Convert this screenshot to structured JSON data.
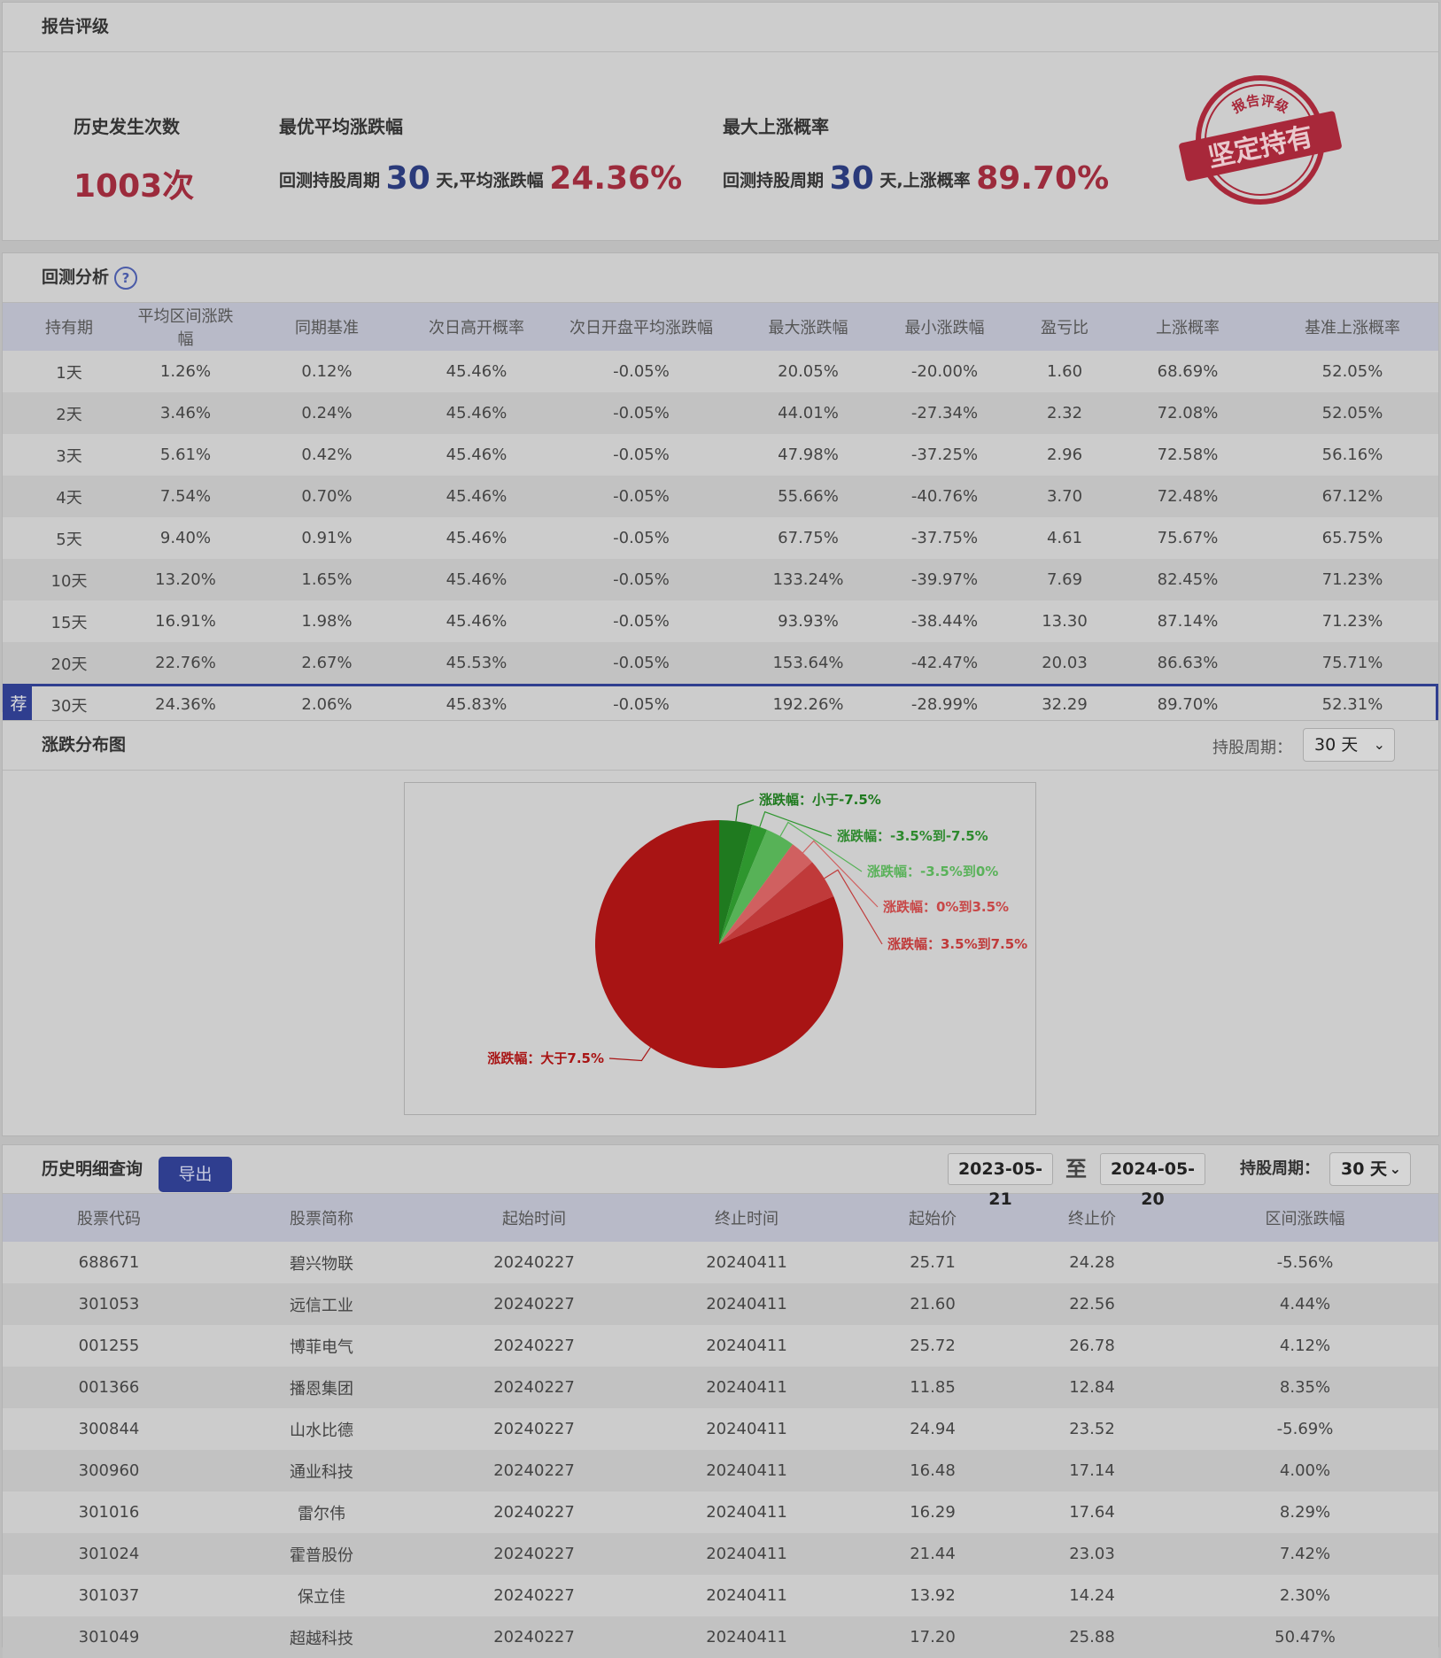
{
  "rating": {
    "title": "报告评级",
    "occurrences_label": "历史发生次数",
    "occurrences_value": "1003次",
    "best_avg_label": "最优平均涨跌幅",
    "best_avg_prefix": "回测持股周期",
    "best_avg_days": "30",
    "best_avg_mid": "天,平均涨跌幅",
    "best_avg_value": "24.36%",
    "max_up_label": "最大上涨概率",
    "max_up_prefix": "回测持股周期",
    "max_up_days": "30",
    "max_up_mid": "天,上涨概率",
    "max_up_value": "89.70%",
    "stamp_top": "报告评级",
    "stamp_main": "坚定持有"
  },
  "backtest": {
    "title": "回测分析",
    "help_icon": "?",
    "columns": [
      "持有期",
      "平均区间涨跌幅",
      "同期基准",
      "次日高开概率",
      "次日开盘平均涨跌幅",
      "最大涨跌幅",
      "最小涨跌幅",
      "盈亏比",
      "上涨概率",
      "基准上涨概率"
    ],
    "reco_badge": "荐",
    "rows": [
      [
        "1天",
        "1.26%",
        "0.12%",
        "45.46%",
        "-0.05%",
        "20.05%",
        "-20.00%",
        "1.60",
        "68.69%",
        "52.05%"
      ],
      [
        "2天",
        "3.46%",
        "0.24%",
        "45.46%",
        "-0.05%",
        "44.01%",
        "-27.34%",
        "2.32",
        "72.08%",
        "52.05%"
      ],
      [
        "3天",
        "5.61%",
        "0.42%",
        "45.46%",
        "-0.05%",
        "47.98%",
        "-37.25%",
        "2.96",
        "72.58%",
        "56.16%"
      ],
      [
        "4天",
        "7.54%",
        "0.70%",
        "45.46%",
        "-0.05%",
        "55.66%",
        "-40.76%",
        "3.70",
        "72.48%",
        "67.12%"
      ],
      [
        "5天",
        "9.40%",
        "0.91%",
        "45.46%",
        "-0.05%",
        "67.75%",
        "-37.75%",
        "4.61",
        "75.67%",
        "65.75%"
      ],
      [
        "10天",
        "13.20%",
        "1.65%",
        "45.46%",
        "-0.05%",
        "133.24%",
        "-39.97%",
        "7.69",
        "82.45%",
        "71.23%"
      ],
      [
        "15天",
        "16.91%",
        "1.98%",
        "45.46%",
        "-0.05%",
        "93.93%",
        "-38.44%",
        "13.30",
        "87.14%",
        "71.23%"
      ],
      [
        "20天",
        "22.76%",
        "2.67%",
        "45.53%",
        "-0.05%",
        "153.64%",
        "-42.47%",
        "20.03",
        "86.63%",
        "75.71%"
      ],
      [
        "30天",
        "24.36%",
        "2.06%",
        "45.83%",
        "-0.05%",
        "192.26%",
        "-28.99%",
        "32.29",
        "89.70%",
        "52.31%"
      ]
    ]
  },
  "distribution": {
    "title": "涨跌分布图",
    "period_label": "持股周期：",
    "period_value": "30 天"
  },
  "chart_data": {
    "type": "pie",
    "title": "",
    "labels": [
      "涨跌幅：小于-7.5%",
      "涨跌幅：-3.5%到-7.5%",
      "涨跌幅：-3.5%到0%",
      "涨跌幅：0%到3.5%",
      "涨跌幅：3.5%到7.5%",
      "涨跌幅：大于7.5%"
    ],
    "values": [
      4.3,
      2.0,
      3.8,
      3.4,
      5.2,
      81.3
    ],
    "colors": [
      "#1f7a1f",
      "#2e962e",
      "#57b257",
      "#d06060",
      "#c03a3a",
      "#a81414"
    ],
    "label_colors": [
      "#1f7a1f",
      "#2e8a2e",
      "#5ab25a",
      "#c84848",
      "#c03a3a",
      "#a81414"
    ]
  },
  "history": {
    "title": "历史明细查询",
    "export_label": "导出",
    "date_from": "2023-05-21",
    "date_sep": "至",
    "date_to": "2024-05-20",
    "period_label": "持股周期：",
    "period_value": "30 天",
    "columns": [
      "股票代码",
      "股票简称",
      "起始时间",
      "终止时间",
      "起始价",
      "终止价",
      "区间涨跌幅"
    ],
    "rows": [
      [
        "688671",
        "碧兴物联",
        "20240227",
        "20240411",
        "25.71",
        "24.28",
        "-5.56%"
      ],
      [
        "301053",
        "远信工业",
        "20240227",
        "20240411",
        "21.60",
        "22.56",
        "4.44%"
      ],
      [
        "001255",
        "博菲电气",
        "20240227",
        "20240411",
        "25.72",
        "26.78",
        "4.12%"
      ],
      [
        "001366",
        "播恩集团",
        "20240227",
        "20240411",
        "11.85",
        "12.84",
        "8.35%"
      ],
      [
        "300844",
        "山水比德",
        "20240227",
        "20240411",
        "24.94",
        "23.52",
        "-5.69%"
      ],
      [
        "300960",
        "通业科技",
        "20240227",
        "20240411",
        "16.48",
        "17.14",
        "4.00%"
      ],
      [
        "301016",
        "雷尔伟",
        "20240227",
        "20240411",
        "16.29",
        "17.64",
        "8.29%"
      ],
      [
        "301024",
        "霍普股份",
        "20240227",
        "20240411",
        "21.44",
        "23.03",
        "7.42%"
      ],
      [
        "301037",
        "保立佳",
        "20240227",
        "20240411",
        "13.92",
        "14.24",
        "2.30%"
      ],
      [
        "301049",
        "超越科技",
        "20240227",
        "20240411",
        "17.20",
        "25.88",
        "50.47%"
      ]
    ]
  }
}
